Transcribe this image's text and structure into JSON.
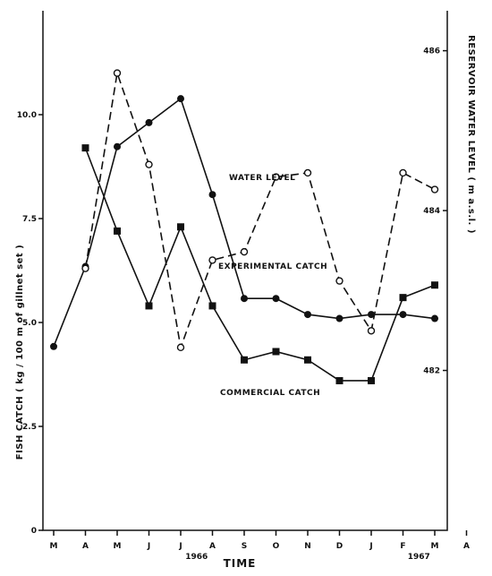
{
  "chart_data": {
    "type": "line",
    "xlabel": "TIME",
    "ylabel_left": "FISH CATCH ( kg / 100 m of gillnet set )",
    "ylabel_right": "RESERVOIR WATER LEVEL ( m a.s.l. )",
    "x_categories": [
      "M",
      "A",
      "M",
      "J",
      "J",
      "A",
      "S",
      "O",
      "N",
      "D",
      "J",
      "F",
      "M",
      "A"
    ],
    "year_labels": [
      {
        "text": "1966",
        "after_index": 4
      },
      {
        "text": "1967",
        "after_index": 11
      }
    ],
    "left_axis": {
      "ylim": [
        0,
        12.5
      ],
      "ticks": [
        "0",
        "2.5",
        "5.0",
        "7.5",
        "10.0"
      ],
      "tick_values": [
        0,
        2.5,
        5.0,
        7.5,
        10.0
      ]
    },
    "right_axis": {
      "ylim": [
        480,
        486.5
      ],
      "ticks": [
        "482",
        "484",
        "486"
      ],
      "tick_values": [
        482,
        484,
        486
      ]
    },
    "series": [
      {
        "name": "WATER LEVEL",
        "axis": "right",
        "style": "solid",
        "marker": "filled-circle",
        "x_index": [
          0,
          1,
          2,
          3,
          4,
          5,
          6,
          7,
          8,
          9,
          10,
          11,
          12
        ],
        "values": [
          482.3,
          483.3,
          484.8,
          485.1,
          485.4,
          484.2,
          482.9,
          482.9,
          482.7,
          482.65,
          482.7,
          482.7,
          482.65
        ]
      },
      {
        "name": "EXPERIMENTAL CATCH",
        "axis": "left",
        "style": "dashed",
        "marker": "open-circle",
        "x_index": [
          1,
          2,
          3,
          4,
          5,
          6,
          7,
          8,
          9,
          10,
          11,
          12
        ],
        "values": [
          6.3,
          11.0,
          8.8,
          4.4,
          6.5,
          6.7,
          8.5,
          8.6,
          6.0,
          4.8,
          8.6,
          8.2
        ]
      },
      {
        "name": "COMMERCIAL CATCH",
        "axis": "left",
        "style": "solid",
        "marker": "filled-square",
        "x_index": [
          1,
          2,
          3,
          4,
          5,
          6,
          7,
          8,
          9,
          10,
          11,
          12
        ],
        "values": [
          9.2,
          7.2,
          5.4,
          7.3,
          5.4,
          4.1,
          4.3,
          4.1,
          3.6,
          3.6,
          5.6,
          5.9
        ]
      }
    ],
    "annotations": [
      "WATER LEVEL",
      "EXPERIMENTAL CATCH",
      "COMMERCIAL CATCH"
    ],
    "grid": false
  }
}
